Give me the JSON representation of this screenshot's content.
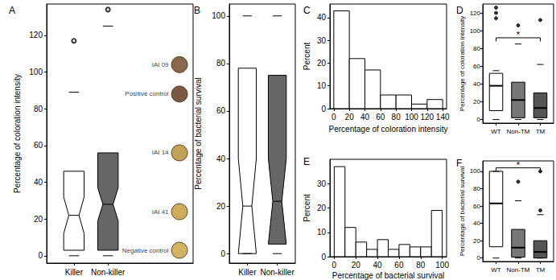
{
  "chart_data": [
    {
      "panel_label": "A",
      "type": "boxplot",
      "categories": [
        "Killer",
        "Non-killer"
      ],
      "colors": [
        "#ffffff",
        "#666666"
      ],
      "boxes": [
        [
          0,
          3,
          22,
          46,
          89
        ],
        [
          0,
          3,
          28,
          56,
          125
        ]
      ],
      "notches": [
        [
          12,
          32
        ],
        [
          19,
          37
        ]
      ],
      "outliers": [
        [
          117
        ],
        [
          134
        ]
      ],
      "marker": "circle-open",
      "ylabel": "Percentage of coloration intensity",
      "ylim": [
        -4,
        137
      ],
      "yticks": [
        0,
        20,
        40,
        60,
        80,
        100,
        120
      ],
      "samples": [
        {
          "label": "IAI 09",
          "color": "#6b4420",
          "value": 104
        },
        {
          "label": "Positive control",
          "color": "#5a3015",
          "value": 88
        },
        {
          "label": "IAI 14",
          "color": "#b48a2c",
          "value": 56
        },
        {
          "label": "IAI 41",
          "color": "#c39734",
          "value": 24
        },
        {
          "label": "Negative control",
          "color": "#c8a03c",
          "value": 3
        }
      ]
    },
    {
      "panel_label": "B",
      "type": "boxplot",
      "categories": [
        "Killer",
        "Non-killer"
      ],
      "colors": [
        "#ffffff",
        "#666666"
      ],
      "boxes": [
        [
          0,
          0,
          20,
          78,
          100
        ],
        [
          0,
          4,
          22,
          75,
          100
        ]
      ],
      "notches": [
        [
          0,
          40
        ],
        [
          4,
          40
        ]
      ],
      "outliers": [
        [],
        []
      ],
      "ylabel": "Percentage of bacterial survival",
      "ylim": [
        -4,
        105
      ],
      "yticks": [
        0,
        20,
        40,
        60,
        80,
        100
      ]
    },
    {
      "panel_label": "C",
      "type": "histogram",
      "bins": [
        0,
        20,
        40,
        60,
        80,
        100,
        120,
        140
      ],
      "counts": [
        43,
        22,
        17,
        6,
        6,
        2,
        4
      ],
      "xlabel": "Percentage of coloration intensity",
      "ylabel": "Percent",
      "xlim": [
        -5,
        145
      ],
      "xticks": [
        0,
        20,
        40,
        60,
        80,
        100,
        120,
        140
      ],
      "ylim": [
        0,
        46
      ],
      "yticks": [
        0,
        10,
        20,
        30,
        40
      ]
    },
    {
      "panel_label": "D",
      "type": "boxplot",
      "categories": [
        "WT",
        "Non-TM",
        "TM"
      ],
      "colors": [
        "#ffffff",
        "#777777",
        "#555555"
      ],
      "boxes": [
        [
          0,
          10,
          38,
          52,
          55
        ],
        [
          0,
          2,
          22,
          42,
          85
        ],
        [
          0,
          2,
          13,
          30,
          62
        ]
      ],
      "outliers": [
        [
          114,
          120,
          126
        ],
        [
          106
        ],
        [
          112
        ]
      ],
      "marker": "circle",
      "annotations": [
        {
          "from": "WT",
          "to": "TM",
          "y": 92,
          "text": "*"
        }
      ],
      "ylabel": "Percentage of coloration intensity",
      "ylim": [
        -4,
        130
      ],
      "yticks": [
        0,
        20,
        40,
        60,
        80,
        100,
        120
      ]
    },
    {
      "panel_label": "E",
      "type": "histogram",
      "bins": [
        0,
        10,
        20,
        30,
        40,
        50,
        60,
        70,
        80,
        90,
        100
      ],
      "counts": [
        37,
        12,
        6,
        3,
        7,
        3,
        5,
        4,
        4,
        19
      ],
      "xlabel": "Percentage of bacterial survival",
      "ylabel": "Percent",
      "xlim": [
        -4,
        104
      ],
      "xticks": [
        0,
        20,
        40,
        60,
        80,
        100
      ],
      "ylim": [
        0,
        40
      ],
      "yticks": [
        0,
        10,
        20,
        30
      ]
    },
    {
      "panel_label": "F",
      "type": "boxplot",
      "categories": [
        "WT",
        "Non-TM",
        "TM"
      ],
      "colors": [
        "#ffffff",
        "#777777",
        "#555555"
      ],
      "boxes": [
        [
          0,
          13,
          63,
          100,
          100
        ],
        [
          0,
          1,
          12,
          33,
          66
        ],
        [
          0,
          0,
          7,
          20,
          50
        ]
      ],
      "outliers": [
        [],
        [
          88
        ],
        [
          55,
          100
        ]
      ],
      "marker": "circle",
      "annotations": [
        {
          "from": "WT",
          "to": "TM",
          "y": 104,
          "text": "*"
        }
      ],
      "ylabel": "Percentage of bacterial survival",
      "ylim": [
        -4,
        112
      ],
      "yticks": [
        0,
        20,
        40,
        60,
        80,
        100
      ]
    }
  ]
}
